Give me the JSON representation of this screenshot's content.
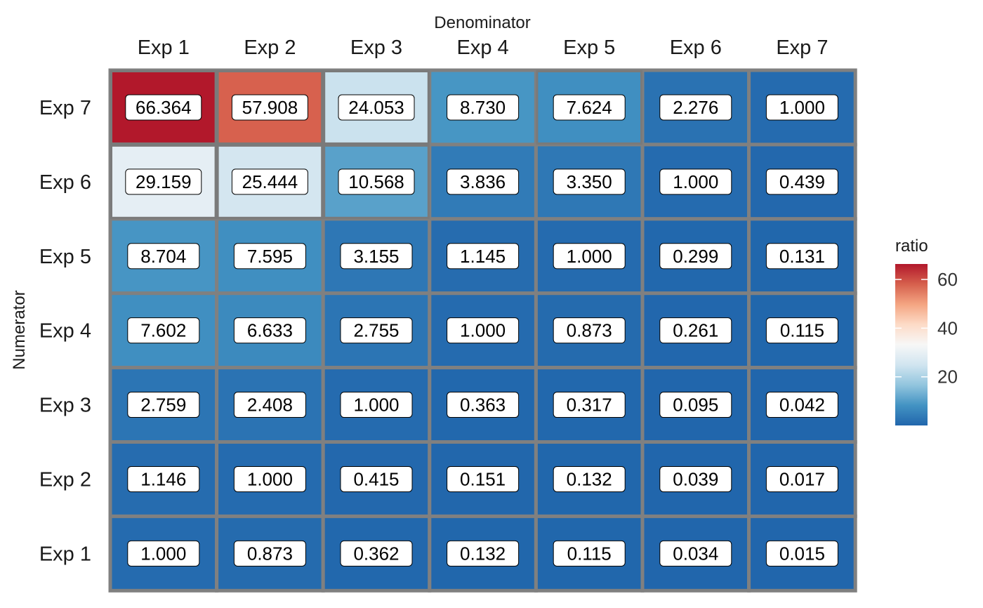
{
  "chart_data": {
    "type": "heatmap",
    "xlabel": "Denominator",
    "ylabel": "Numerator",
    "x_categories": [
      "Exp 1",
      "Exp 2",
      "Exp 3",
      "Exp 4",
      "Exp 5",
      "Exp 6",
      "Exp 7"
    ],
    "y_categories": [
      "Exp 7",
      "Exp 6",
      "Exp 5",
      "Exp 4",
      "Exp 3",
      "Exp 2",
      "Exp 1"
    ],
    "values": [
      [
        "66.364",
        "57.908",
        "24.053",
        "8.730",
        "7.624",
        "2.276",
        "1.000"
      ],
      [
        "29.159",
        "25.444",
        "10.568",
        "3.836",
        "3.350",
        "1.000",
        "0.439"
      ],
      [
        "8.704",
        "7.595",
        "3.155",
        "1.145",
        "1.000",
        "0.299",
        "0.131"
      ],
      [
        "7.602",
        "6.633",
        "2.755",
        "1.000",
        "0.873",
        "0.261",
        "0.115"
      ],
      [
        "2.759",
        "2.408",
        "1.000",
        "0.363",
        "0.317",
        "0.095",
        "0.042"
      ],
      [
        "1.146",
        "1.000",
        "0.415",
        "0.151",
        "0.132",
        "0.039",
        "0.017"
      ],
      [
        "1.000",
        "0.873",
        "0.362",
        "0.132",
        "0.115",
        "0.034",
        "0.015"
      ]
    ],
    "highlighted_cells": [
      [
        0,
        0
      ],
      [
        0,
        1
      ],
      [
        0,
        2
      ],
      [
        0,
        4
      ],
      [
        1,
        0
      ],
      [
        1,
        1
      ],
      [
        1,
        2
      ]
    ],
    "legend": {
      "title": "ratio",
      "ticks": [
        20,
        40,
        60
      ],
      "range": [
        0.015,
        66.364
      ],
      "placement": "right",
      "colors": [
        "#2166ac",
        "#4393c3",
        "#92c5de",
        "#d1e5f0",
        "#f7f7f7",
        "#fddbc7",
        "#f4a582",
        "#d6604d",
        "#b2182b"
      ]
    },
    "grid": false,
    "cell_border_color": "#808080",
    "highlight_border_color": "#7a7a7a"
  }
}
